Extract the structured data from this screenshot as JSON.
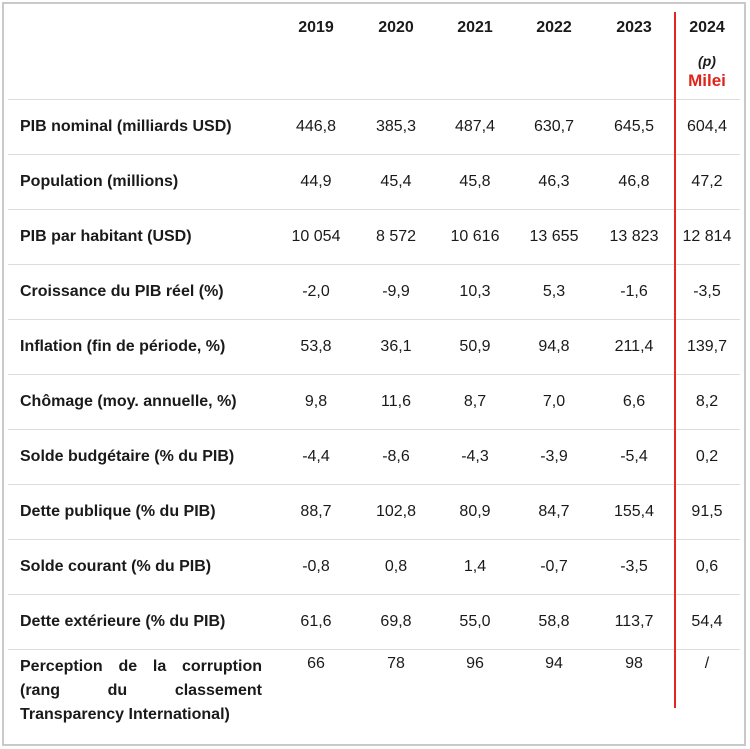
{
  "header": {
    "years": [
      "2019",
      "2020",
      "2021",
      "2022",
      "2023",
      "2024"
    ],
    "projection_note": "(p)",
    "highlight_label": "Milei"
  },
  "rows": [
    {
      "label": "PIB nominal (milliards USD)",
      "values": [
        "446,8",
        "385,3",
        "487,4",
        "630,7",
        "645,5",
        "604,4"
      ]
    },
    {
      "label": "Population (millions)",
      "values": [
        "44,9",
        "45,4",
        "45,8",
        "46,3",
        "46,8",
        "47,2"
      ]
    },
    {
      "label": "PIB par habitant (USD)",
      "values": [
        "10 054",
        "8 572",
        "10 616",
        "13 655",
        "13 823",
        "12 814"
      ]
    },
    {
      "label": "Croissance du PIB réel (%)",
      "values": [
        "-2,0",
        "-9,9",
        "10,3",
        "5,3",
        "-1,6",
        "-3,5"
      ]
    },
    {
      "label": "Inflation (fin de période, %)",
      "values": [
        "53,8",
        "36,1",
        "50,9",
        "94,8",
        "211,4",
        "139,7"
      ]
    },
    {
      "label": "Chômage (moy. annuelle, %)",
      "values": [
        "9,8",
        "11,6",
        "8,7",
        "7,0",
        "6,6",
        "8,2"
      ]
    },
    {
      "label": "Solde budgétaire (% du PIB)",
      "values": [
        "-4,4",
        "-8,6",
        "-4,3",
        "-3,9",
        "-5,4",
        "0,2"
      ]
    },
    {
      "label": "Dette publique (% du PIB)",
      "values": [
        "88,7",
        "102,8",
        "80,9",
        "84,7",
        "155,4",
        "91,5"
      ]
    },
    {
      "label": "Solde courant (% du PIB)",
      "values": [
        "-0,8",
        "0,8",
        "1,4",
        "-0,7",
        "-3,5",
        "0,6"
      ]
    },
    {
      "label": "Dette extérieure (% du PIB)",
      "values": [
        "61,6",
        "69,8",
        "55,0",
        "58,8",
        "113,7",
        "54,4"
      ]
    },
    {
      "label": "Perception de la corruption (rang du classement Transparency International)",
      "values": [
        "66",
        "78",
        "96",
        "94",
        "98",
        "/"
      ]
    }
  ],
  "accent_color": "#e52620"
}
